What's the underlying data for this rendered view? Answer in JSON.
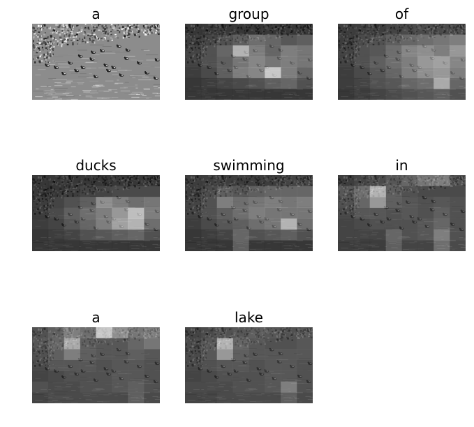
{
  "panels": [
    {
      "word": "a",
      "attention": null
    },
    {
      "word": "group",
      "attention": [
        [
          0.05,
          0.05,
          0.05,
          0.05,
          0.05,
          0.05,
          0.05,
          0.05
        ],
        [
          0.1,
          0.15,
          0.25,
          0.35,
          0.45,
          0.4,
          0.3,
          0.35
        ],
        [
          0.15,
          0.25,
          0.4,
          0.85,
          0.55,
          0.4,
          0.55,
          0.5
        ],
        [
          0.15,
          0.25,
          0.35,
          0.5,
          0.6,
          0.5,
          0.55,
          0.5
        ],
        [
          0.1,
          0.2,
          0.35,
          0.55,
          0.6,
          0.95,
          0.55,
          0.4
        ],
        [
          0.05,
          0.1,
          0.15,
          0.2,
          0.25,
          0.35,
          0.4,
          0.25
        ],
        [
          0.05,
          0.05,
          0.05,
          0.05,
          0.05,
          0.05,
          0.05,
          0.05
        ]
      ]
    },
    {
      "word": "of",
      "attention": [
        [
          0.1,
          0.1,
          0.1,
          0.15,
          0.2,
          0.2,
          0.2,
          0.2
        ],
        [
          0.1,
          0.2,
          0.25,
          0.35,
          0.4,
          0.45,
          0.5,
          0.55
        ],
        [
          0.15,
          0.25,
          0.3,
          0.45,
          0.6,
          0.65,
          0.55,
          0.7
        ],
        [
          0.15,
          0.25,
          0.35,
          0.45,
          0.55,
          0.7,
          0.75,
          0.6
        ],
        [
          0.1,
          0.2,
          0.3,
          0.4,
          0.55,
          0.65,
          0.7,
          0.55
        ],
        [
          0.1,
          0.15,
          0.25,
          0.3,
          0.4,
          0.45,
          0.8,
          0.4
        ],
        [
          0.05,
          0.1,
          0.15,
          0.2,
          0.25,
          0.3,
          0.35,
          0.25
        ]
      ]
    },
    {
      "word": "ducks",
      "attention": [
        [
          0.05,
          0.05,
          0.05,
          0.05,
          0.05,
          0.05,
          0.05,
          0.05
        ],
        [
          0.05,
          0.05,
          0.1,
          0.15,
          0.15,
          0.2,
          0.2,
          0.2
        ],
        [
          0.1,
          0.15,
          0.25,
          0.35,
          0.65,
          0.55,
          0.45,
          0.5
        ],
        [
          0.1,
          0.2,
          0.35,
          0.45,
          0.55,
          0.7,
          0.9,
          0.55
        ],
        [
          0.1,
          0.15,
          0.3,
          0.4,
          0.55,
          0.75,
          0.85,
          0.45
        ],
        [
          0.05,
          0.1,
          0.15,
          0.25,
          0.3,
          0.35,
          0.4,
          0.25
        ],
        [
          0.05,
          0.05,
          0.05,
          0.05,
          0.05,
          0.05,
          0.05,
          0.05
        ]
      ]
    },
    {
      "word": "swimming",
      "attention": [
        [
          0.1,
          0.1,
          0.1,
          0.1,
          0.1,
          0.1,
          0.15,
          0.15
        ],
        [
          0.1,
          0.2,
          0.35,
          0.3,
          0.35,
          0.4,
          0.4,
          0.4
        ],
        [
          0.15,
          0.25,
          0.55,
          0.45,
          0.5,
          0.55,
          0.5,
          0.55
        ],
        [
          0.15,
          0.25,
          0.35,
          0.45,
          0.55,
          0.5,
          0.5,
          0.5
        ],
        [
          0.1,
          0.2,
          0.3,
          0.35,
          0.45,
          0.5,
          0.85,
          0.45
        ],
        [
          0.05,
          0.1,
          0.15,
          0.4,
          0.25,
          0.3,
          0.35,
          0.25
        ],
        [
          0.05,
          0.05,
          0.05,
          0.35,
          0.05,
          0.05,
          0.05,
          0.05
        ]
      ]
    },
    {
      "word": "in",
      "attention": [
        [
          0.1,
          0.15,
          0.2,
          0.3,
          0.4,
          0.5,
          0.55,
          0.25
        ],
        [
          0.3,
          0.45,
          0.85,
          0.35,
          0.25,
          0.2,
          0.2,
          0.2
        ],
        [
          0.25,
          0.4,
          0.7,
          0.35,
          0.3,
          0.25,
          0.3,
          0.25
        ],
        [
          0.2,
          0.3,
          0.3,
          0.25,
          0.3,
          0.25,
          0.35,
          0.25
        ],
        [
          0.15,
          0.2,
          0.25,
          0.25,
          0.25,
          0.3,
          0.4,
          0.25
        ],
        [
          0.15,
          0.15,
          0.15,
          0.4,
          0.25,
          0.3,
          0.55,
          0.25
        ],
        [
          0.1,
          0.1,
          0.1,
          0.35,
          0.15,
          0.15,
          0.45,
          0.2
        ]
      ]
    },
    {
      "word": "a",
      "attention": [
        [
          0.25,
          0.35,
          0.55,
          0.45,
          0.95,
          0.65,
          0.5,
          0.55
        ],
        [
          0.3,
          0.4,
          0.8,
          0.35,
          0.3,
          0.3,
          0.4,
          0.5
        ],
        [
          0.25,
          0.35,
          0.55,
          0.35,
          0.3,
          0.3,
          0.35,
          0.3
        ],
        [
          0.2,
          0.3,
          0.3,
          0.3,
          0.25,
          0.3,
          0.3,
          0.25
        ],
        [
          0.15,
          0.2,
          0.25,
          0.25,
          0.25,
          0.3,
          0.3,
          0.25
        ],
        [
          0.25,
          0.2,
          0.2,
          0.25,
          0.25,
          0.3,
          0.35,
          0.25
        ],
        [
          0.15,
          0.2,
          0.2,
          0.2,
          0.2,
          0.2,
          0.35,
          0.2
        ]
      ]
    },
    {
      "word": "lake",
      "attention": [
        [
          0.15,
          0.2,
          0.25,
          0.3,
          0.35,
          0.3,
          0.25,
          0.3
        ],
        [
          0.2,
          0.3,
          0.85,
          0.4,
          0.3,
          0.25,
          0.25,
          0.3
        ],
        [
          0.2,
          0.3,
          0.7,
          0.35,
          0.3,
          0.3,
          0.3,
          0.3
        ],
        [
          0.2,
          0.25,
          0.3,
          0.3,
          0.25,
          0.3,
          0.3,
          0.25
        ],
        [
          0.15,
          0.2,
          0.25,
          0.25,
          0.25,
          0.3,
          0.3,
          0.25
        ],
        [
          0.2,
          0.2,
          0.2,
          0.25,
          0.25,
          0.3,
          0.55,
          0.25
        ],
        [
          0.15,
          0.15,
          0.2,
          0.2,
          0.2,
          0.2,
          0.35,
          0.2
        ]
      ]
    }
  ]
}
